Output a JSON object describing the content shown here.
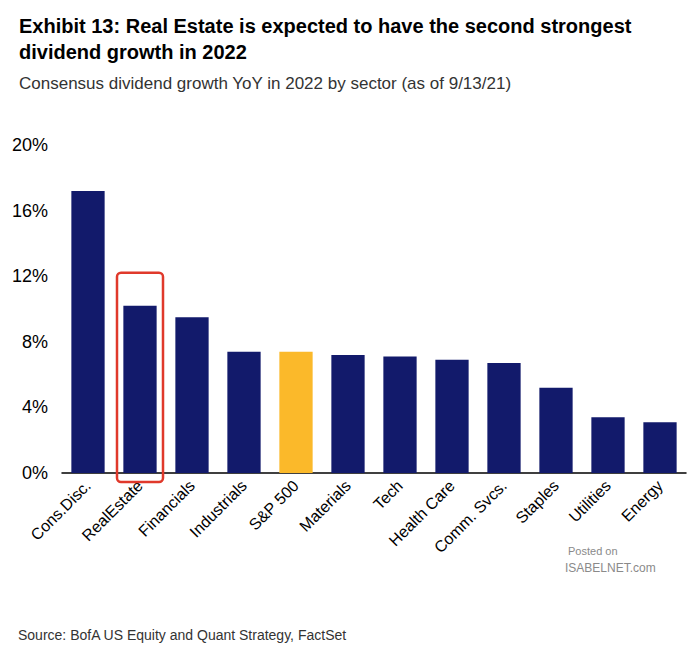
{
  "chart_data": {
    "type": "bar",
    "title": "Exhibit 13: Real Estate is expected to have the second strongest dividend growth in 2022",
    "subtitle": "Consensus dividend growth YoY in 2022 by sector (as of 9/13/21)",
    "categories": [
      "Cons.Disc.",
      "RealEstate",
      "Financials",
      "Industrials",
      "S&P 500",
      "Materials",
      "Tech",
      "Health Care",
      "Comm. Svcs.",
      "Staples",
      "Utilities",
      "Energy"
    ],
    "values": [
      17.2,
      10.2,
      9.5,
      7.4,
      7.4,
      7.2,
      7.1,
      6.9,
      6.7,
      5.2,
      3.4,
      3.1
    ],
    "colors": [
      "#121a6b",
      "#121a6b",
      "#121a6b",
      "#121a6b",
      "#fbb92a",
      "#121a6b",
      "#121a6b",
      "#121a6b",
      "#121a6b",
      "#121a6b",
      "#121a6b",
      "#121a6b"
    ],
    "ylim": [
      0,
      20
    ],
    "yticks": [
      {
        "value": 0,
        "label": "0%"
      },
      {
        "value": 4,
        "label": "4%"
      },
      {
        "value": 8,
        "label": "8%"
      },
      {
        "value": 12,
        "label": "12%"
      },
      {
        "value": 16,
        "label": "16%"
      },
      {
        "value": 20,
        "label": "20%"
      }
    ],
    "grid": false,
    "annotations": [
      "Source: BofA US Equity and Quant Strategy, FactSet",
      "Posted on",
      "ISABELNET.com"
    ]
  }
}
